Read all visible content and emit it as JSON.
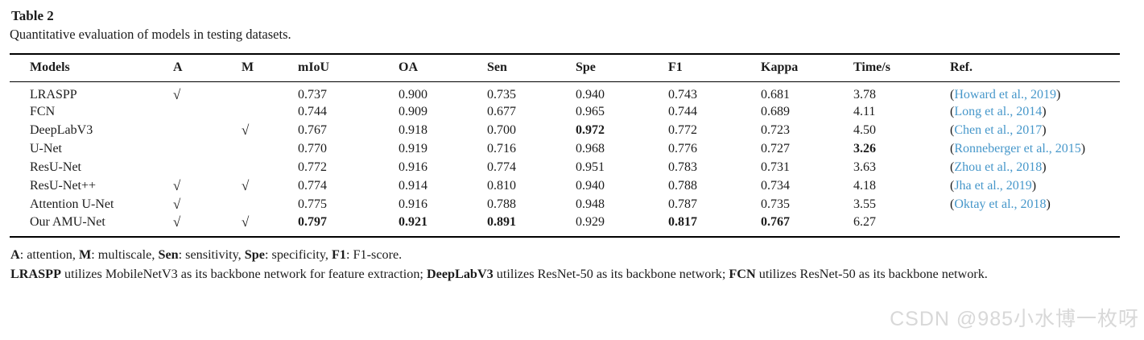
{
  "page": {
    "title": "Table 2",
    "caption": "Quantitative evaluation of models in testing datasets."
  },
  "table": {
    "check_glyph": "√",
    "columns": [
      {
        "key": "model",
        "label": "Models"
      },
      {
        "key": "a",
        "label": "A"
      },
      {
        "key": "m",
        "label": "M"
      },
      {
        "key": "miou",
        "label": "mIoU"
      },
      {
        "key": "oa",
        "label": "OA"
      },
      {
        "key": "sen",
        "label": "Sen"
      },
      {
        "key": "spe",
        "label": "Spe"
      },
      {
        "key": "f1",
        "label": "F1"
      },
      {
        "key": "kappa",
        "label": "Kappa"
      },
      {
        "key": "time",
        "label": "Time/s"
      },
      {
        "key": "ref",
        "label": "Ref."
      }
    ],
    "rows": [
      {
        "model": "LRASPP",
        "a": true,
        "m": false,
        "miou": "0.737",
        "oa": "0.900",
        "sen": "0.735",
        "spe": "0.940",
        "f1": "0.743",
        "kappa": "0.681",
        "time": "3.78",
        "ref": "Howard et al., 2019",
        "bold": []
      },
      {
        "model": "FCN",
        "a": false,
        "m": false,
        "miou": "0.744",
        "oa": "0.909",
        "sen": "0.677",
        "spe": "0.965",
        "f1": "0.744",
        "kappa": "0.689",
        "time": "4.11",
        "ref": "Long et al., 2014",
        "bold": []
      },
      {
        "model": "DeepLabV3",
        "a": false,
        "m": true,
        "miou": "0.767",
        "oa": "0.918",
        "sen": "0.700",
        "spe": "0.972",
        "f1": "0.772",
        "kappa": "0.723",
        "time": "4.50",
        "ref": "Chen et al., 2017",
        "bold": [
          "spe"
        ]
      },
      {
        "model": "U-Net",
        "a": false,
        "m": false,
        "miou": "0.770",
        "oa": "0.919",
        "sen": "0.716",
        "spe": "0.968",
        "f1": "0.776",
        "kappa": "0.727",
        "time": "3.26",
        "ref": "Ronneberger et al., 2015",
        "bold": [
          "time"
        ]
      },
      {
        "model": "ResU-Net",
        "a": false,
        "m": false,
        "miou": "0.772",
        "oa": "0.916",
        "sen": "0.774",
        "spe": "0.951",
        "f1": "0.783",
        "kappa": "0.731",
        "time": "3.63",
        "ref": "Zhou et al., 2018",
        "bold": []
      },
      {
        "model": "ResU-Net++",
        "a": true,
        "m": true,
        "miou": "0.774",
        "oa": "0.914",
        "sen": "0.810",
        "spe": "0.940",
        "f1": "0.788",
        "kappa": "0.734",
        "time": "4.18",
        "ref": "Jha et al., 2019",
        "bold": []
      },
      {
        "model": "Attention U-Net",
        "a": true,
        "m": false,
        "miou": "0.775",
        "oa": "0.916",
        "sen": "0.788",
        "spe": "0.948",
        "f1": "0.787",
        "kappa": "0.735",
        "time": "3.55",
        "ref": "Oktay et al., 2018",
        "bold": []
      },
      {
        "model": "Our AMU-Net",
        "a": true,
        "m": true,
        "miou": "0.797",
        "oa": "0.921",
        "sen": "0.891",
        "spe": "0.929",
        "f1": "0.817",
        "kappa": "0.767",
        "time": "6.27",
        "ref": "",
        "bold": [
          "miou",
          "oa",
          "sen",
          "f1",
          "kappa"
        ]
      }
    ]
  },
  "footnotes": [
    {
      "segments": [
        {
          "b": "A"
        },
        {
          "t": ": attention, "
        },
        {
          "b": "M"
        },
        {
          "t": ": multiscale, "
        },
        {
          "b": "Sen"
        },
        {
          "t": ": sensitivity, "
        },
        {
          "b": "Spe"
        },
        {
          "t": ": specificity, "
        },
        {
          "b": "F1"
        },
        {
          "t": ": F1-score."
        }
      ]
    },
    {
      "segments": [
        {
          "b": "LRASPP"
        },
        {
          "t": " utilizes MobileNetV3 as its backbone network for feature extraction; "
        },
        {
          "b": "DeepLabV3"
        },
        {
          "t": " utilizes ResNet-50 as its backbone network; "
        },
        {
          "b": "FCN"
        },
        {
          "t": " utilizes ResNet-50 as its backbone network."
        }
      ]
    }
  ],
  "watermark": {
    "text": "CSDN @985小水博一枚呀"
  },
  "colors": {
    "link_blue": "#4697ca",
    "rule_black": "#000000",
    "watermark_gray": "#d8d8d8"
  }
}
